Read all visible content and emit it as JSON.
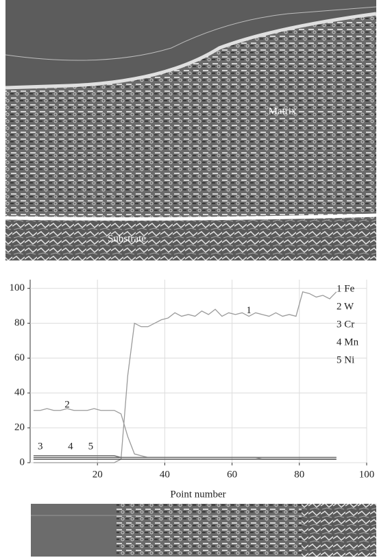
{
  "image_labels": [
    "Matrix",
    "Substrate"
  ],
  "chart_data": {
    "type": "line",
    "xlabel": "Point number",
    "xlim": [
      0,
      100
    ],
    "xticks": [
      20,
      40,
      60,
      80,
      100
    ],
    "ylim": [
      0,
      105
    ],
    "yticks": [
      0,
      20,
      40,
      60,
      80,
      100
    ],
    "grid": true,
    "legend": "upper right",
    "x": [
      1,
      3,
      5,
      7,
      9,
      11,
      13,
      15,
      17,
      19,
      21,
      23,
      25,
      27,
      29,
      31,
      33,
      35,
      37,
      39,
      41,
      43,
      45,
      47,
      49,
      51,
      53,
      55,
      57,
      59,
      61,
      63,
      65,
      67,
      69,
      71,
      73,
      75,
      77,
      79,
      81,
      83,
      85,
      87,
      89,
      91
    ],
    "series": [
      {
        "name": "1 Fe",
        "color": "#9a9a9a",
        "values": [
          0,
          0,
          0,
          0,
          0,
          0,
          0,
          0,
          0,
          0,
          0,
          0,
          0,
          2,
          50,
          80,
          78,
          78,
          80,
          82,
          83,
          86,
          84,
          85,
          84,
          87,
          85,
          88,
          84,
          86,
          85,
          86,
          84,
          86,
          85,
          84,
          86,
          84,
          85,
          84,
          98,
          97,
          95,
          96,
          94,
          98
        ]
      },
      {
        "name": "2 W",
        "color": "#9a9a9a",
        "values": [
          30,
          30,
          31,
          30,
          30,
          31,
          30,
          30,
          30,
          31,
          30,
          30,
          30,
          28,
          15,
          5,
          4,
          3,
          3,
          3,
          3,
          3,
          3,
          3,
          3,
          3,
          3,
          3,
          3,
          3,
          3,
          3,
          3,
          3,
          2,
          2,
          2,
          2,
          2,
          2,
          2,
          2,
          2,
          2,
          2,
          2
        ]
      },
      {
        "name": "3 Cr",
        "color": "#555555",
        "values": [
          3,
          3,
          3,
          3,
          3,
          3,
          3,
          3,
          3,
          3,
          3,
          3,
          3,
          3,
          3,
          3,
          3,
          3,
          3,
          3,
          3,
          3,
          3,
          3,
          3,
          3,
          3,
          3,
          3,
          3,
          3,
          3,
          3,
          3,
          3,
          3,
          3,
          3,
          3,
          3,
          3,
          3,
          3,
          3,
          3,
          3
        ]
      },
      {
        "name": "4 Mn",
        "color": "#666666",
        "values": [
          4,
          4,
          4,
          4,
          4,
          4,
          4,
          4,
          4,
          4,
          4,
          4,
          4,
          3,
          3,
          3,
          3,
          3,
          3,
          3,
          3,
          3,
          3,
          3,
          3,
          3,
          3,
          3,
          3,
          3,
          3,
          3,
          3,
          3,
          3,
          3,
          3,
          3,
          3,
          3,
          3,
          3,
          3,
          3,
          3,
          3
        ]
      },
      {
        "name": "5 Ni",
        "color": "#444444",
        "values": [
          2,
          2,
          2,
          2,
          2,
          2,
          2,
          2,
          2,
          2,
          2,
          2,
          2,
          2,
          2,
          2,
          2,
          2,
          2,
          2,
          2,
          2,
          2,
          2,
          2,
          2,
          2,
          2,
          2,
          2,
          2,
          2,
          2,
          2,
          2,
          2,
          2,
          2,
          2,
          2,
          2,
          2,
          2,
          2,
          2,
          2
        ]
      }
    ],
    "annotations": [
      {
        "text": "1",
        "x": 65,
        "y": 87
      },
      {
        "text": "2",
        "x": 11,
        "y": 33
      },
      {
        "text": "3",
        "x": 3,
        "y": 9
      },
      {
        "text": "4",
        "x": 12,
        "y": 9
      },
      {
        "text": "5",
        "x": 18,
        "y": 9
      }
    ]
  }
}
